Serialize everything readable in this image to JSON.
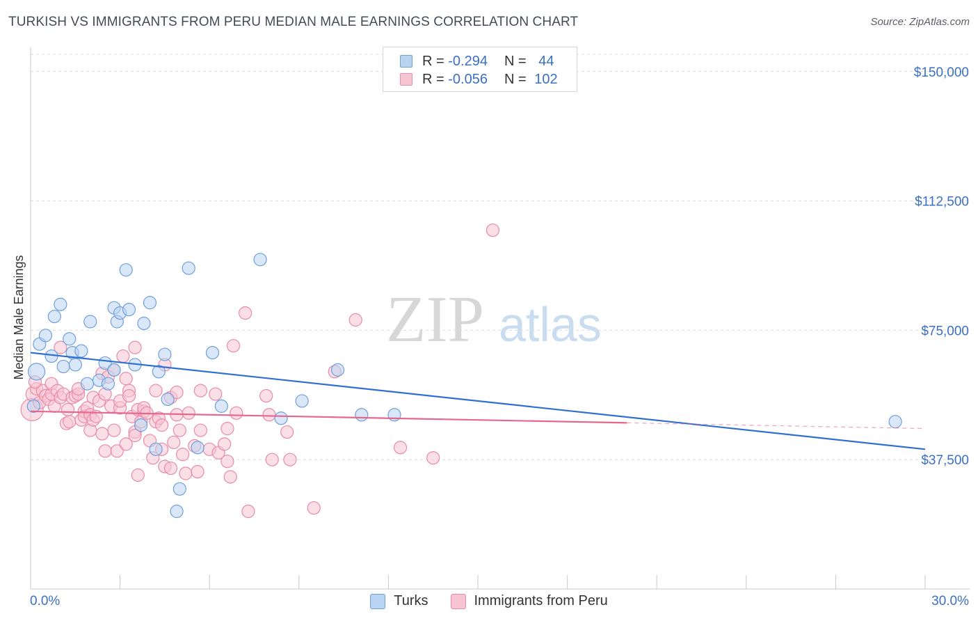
{
  "title": "TURKISH VS IMMIGRANTS FROM PERU MEDIAN MALE EARNINGS CORRELATION CHART",
  "source": "Source: ZipAtlas.com",
  "watermark": {
    "zip": "ZIP",
    "atlas": "atlas"
  },
  "legend": {
    "rows": [
      {
        "r_label": "R =",
        "r_value": "-0.294",
        "n_label": "N =",
        "n_value": "44"
      },
      {
        "r_label": "R =",
        "r_value": "-0.056",
        "n_label": "N =",
        "n_value": "102"
      }
    ]
  },
  "colors": {
    "turks_fill": "#b9d3f3",
    "turks_stroke": "#6e9fdc",
    "turks_line": "#2f6fd0",
    "peru_fill": "#f7c4d4",
    "peru_stroke": "#e88aa8",
    "peru_line": "#e4678e",
    "axis_label": "#3a6fc4",
    "grid": "#dcdcdc"
  },
  "chart_data": {
    "type": "scatter",
    "title": "TURKISH VS IMMIGRANTS FROM PERU MEDIAN MALE EARNINGS CORRELATION CHART",
    "xlabel": "",
    "ylabel": "Median Male Earnings",
    "xlim": [
      0,
      30
    ],
    "ylim": [
      0,
      155000
    ],
    "x_tick_labels": [
      "0.0%",
      "30.0%"
    ],
    "y_ticks": [
      37500,
      75000,
      112500,
      150000
    ],
    "y_tick_labels": [
      "$37,500",
      "$75,000",
      "$112,500",
      "$150,000"
    ],
    "series": [
      {
        "name": "Turks",
        "r": -0.294,
        "n": 44,
        "trend": {
          "x0": 0,
          "y0": 68500,
          "x1": 30,
          "y1": 40500,
          "solid_until": 30
        },
        "points": [
          [
            0.2,
            63000,
            12
          ],
          [
            0.3,
            71000,
            9
          ],
          [
            0.5,
            73500,
            9
          ],
          [
            0.7,
            67500,
            9
          ],
          [
            0.8,
            79000,
            9
          ],
          [
            1.0,
            82500,
            9
          ],
          [
            1.1,
            64500,
            9
          ],
          [
            1.3,
            72500,
            9
          ],
          [
            1.4,
            68500,
            9
          ],
          [
            1.5,
            65000,
            9
          ],
          [
            1.7,
            69000,
            9
          ],
          [
            2.0,
            77500,
            9
          ],
          [
            1.9,
            59500,
            9
          ],
          [
            2.3,
            60500,
            9
          ],
          [
            2.5,
            65500,
            9
          ],
          [
            2.6,
            59500,
            9
          ],
          [
            2.8,
            63500,
            9
          ],
          [
            2.8,
            81500,
            9
          ],
          [
            2.9,
            77500,
            9
          ],
          [
            3.0,
            80000,
            9
          ],
          [
            3.2,
            92500,
            9
          ],
          [
            3.3,
            81000,
            9
          ],
          [
            3.5,
            65000,
            9
          ],
          [
            3.7,
            47500,
            9
          ],
          [
            3.8,
            77000,
            9
          ],
          [
            4.0,
            83000,
            9
          ],
          [
            4.2,
            40500,
            9
          ],
          [
            4.3,
            63000,
            9
          ],
          [
            4.5,
            68000,
            9
          ],
          [
            4.6,
            55000,
            9
          ],
          [
            5.0,
            29000,
            9
          ],
          [
            4.9,
            22500,
            9
          ],
          [
            5.3,
            93000,
            9
          ],
          [
            5.6,
            41000,
            9
          ],
          [
            6.1,
            68500,
            9
          ],
          [
            6.4,
            53000,
            9
          ],
          [
            7.7,
            95500,
            9
          ],
          [
            8.4,
            49500,
            9
          ],
          [
            9.1,
            54500,
            9
          ],
          [
            10.3,
            63500,
            9
          ],
          [
            11.1,
            50500,
            9
          ],
          [
            12.2,
            50500,
            9
          ],
          [
            29.0,
            48500,
            9
          ],
          [
            0.1,
            53000,
            9
          ]
        ]
      },
      {
        "name": "Immigrants from Peru",
        "r": -0.056,
        "n": 102,
        "trend": {
          "x0": 0,
          "y0": 51500,
          "x1": 30,
          "y1": 46500,
          "solid_until": 20
        },
        "points": [
          [
            0.05,
            52000,
            16
          ],
          [
            0.1,
            56500,
            11
          ],
          [
            0.2,
            58000,
            9
          ],
          [
            0.3,
            54000,
            9
          ],
          [
            0.4,
            57500,
            9
          ],
          [
            0.5,
            56000,
            9
          ],
          [
            0.6,
            55000,
            9
          ],
          [
            0.7,
            56500,
            9
          ],
          [
            0.7,
            59500,
            9
          ],
          [
            0.8,
            53000,
            9
          ],
          [
            0.9,
            57500,
            9
          ],
          [
            1.0,
            70000,
            9
          ],
          [
            1.0,
            55500,
            9
          ],
          [
            1.1,
            56500,
            9
          ],
          [
            1.2,
            48000,
            9
          ],
          [
            1.3,
            48500,
            9
          ],
          [
            1.4,
            55500,
            9
          ],
          [
            1.5,
            56000,
            9
          ],
          [
            1.6,
            56500,
            9
          ],
          [
            1.6,
            58000,
            9
          ],
          [
            1.7,
            49000,
            9
          ],
          [
            1.8,
            51500,
            9
          ],
          [
            1.8,
            50000,
            9
          ],
          [
            1.9,
            52500,
            9
          ],
          [
            2.0,
            50500,
            9
          ],
          [
            2.0,
            46000,
            9
          ],
          [
            2.1,
            49000,
            9
          ],
          [
            2.1,
            55500,
            9
          ],
          [
            2.2,
            50000,
            9
          ],
          [
            2.3,
            54500,
            9
          ],
          [
            2.4,
            45000,
            9
          ],
          [
            2.4,
            62500,
            9
          ],
          [
            2.5,
            56500,
            9
          ],
          [
            2.5,
            40000,
            9
          ],
          [
            2.6,
            61500,
            9
          ],
          [
            2.7,
            53000,
            9
          ],
          [
            2.8,
            63500,
            9
          ],
          [
            2.8,
            46000,
            9
          ],
          [
            2.9,
            40000,
            9
          ],
          [
            3.0,
            52500,
            9
          ],
          [
            3.0,
            54500,
            9
          ],
          [
            3.1,
            67500,
            9
          ],
          [
            3.2,
            61000,
            9
          ],
          [
            3.2,
            42000,
            9
          ],
          [
            3.3,
            57500,
            9
          ],
          [
            3.3,
            56000,
            9
          ],
          [
            3.4,
            50000,
            9
          ],
          [
            3.5,
            45500,
            9
          ],
          [
            3.5,
            44500,
            9
          ],
          [
            3.5,
            70000,
            9
          ],
          [
            3.6,
            52000,
            9
          ],
          [
            3.6,
            33000,
            9
          ],
          [
            3.7,
            48500,
            9
          ],
          [
            3.8,
            51500,
            9
          ],
          [
            3.8,
            52500,
            9
          ],
          [
            3.9,
            51000,
            9
          ],
          [
            4.0,
            43000,
            9
          ],
          [
            4.1,
            38000,
            9
          ],
          [
            4.2,
            57500,
            9
          ],
          [
            4.2,
            48500,
            9
          ],
          [
            4.3,
            49500,
            9
          ],
          [
            4.4,
            47500,
            9
          ],
          [
            4.4,
            40500,
            9
          ],
          [
            4.5,
            35500,
            9
          ],
          [
            4.5,
            65000,
            9
          ],
          [
            4.7,
            55500,
            9
          ],
          [
            4.7,
            35000,
            9
          ],
          [
            4.8,
            42500,
            9
          ],
          [
            4.9,
            50500,
            9
          ],
          [
            4.9,
            57000,
            9
          ],
          [
            5.0,
            46000,
            9
          ],
          [
            5.1,
            39000,
            9
          ],
          [
            5.2,
            33500,
            9
          ],
          [
            5.3,
            51000,
            9
          ],
          [
            5.5,
            41500,
            9
          ],
          [
            5.6,
            34000,
            9
          ],
          [
            5.7,
            57500,
            9
          ],
          [
            5.7,
            46000,
            9
          ],
          [
            6.0,
            40500,
            9
          ],
          [
            6.2,
            56500,
            9
          ],
          [
            6.3,
            39500,
            9
          ],
          [
            6.5,
            42000,
            9
          ],
          [
            6.6,
            37000,
            9
          ],
          [
            6.6,
            46500,
            9
          ],
          [
            6.7,
            32500,
            9
          ],
          [
            6.8,
            70500,
            9
          ],
          [
            6.9,
            51000,
            9
          ],
          [
            7.2,
            80000,
            9
          ],
          [
            7.3,
            22500,
            9
          ],
          [
            7.9,
            56000,
            9
          ],
          [
            8.0,
            50500,
            9
          ],
          [
            8.1,
            37500,
            9
          ],
          [
            8.6,
            45500,
            9
          ],
          [
            8.7,
            37500,
            9
          ],
          [
            9.5,
            23500,
            9
          ],
          [
            10.2,
            63000,
            9
          ],
          [
            10.9,
            78000,
            9
          ],
          [
            12.4,
            41000,
            9
          ],
          [
            13.5,
            38000,
            9
          ],
          [
            15.5,
            104000,
            9
          ],
          [
            0.15,
            60000,
            9
          ],
          [
            1.25,
            52000,
            9
          ]
        ]
      }
    ]
  },
  "bottom_legend": [
    {
      "label": "Turks"
    },
    {
      "label": "Immigrants from Peru"
    }
  ]
}
